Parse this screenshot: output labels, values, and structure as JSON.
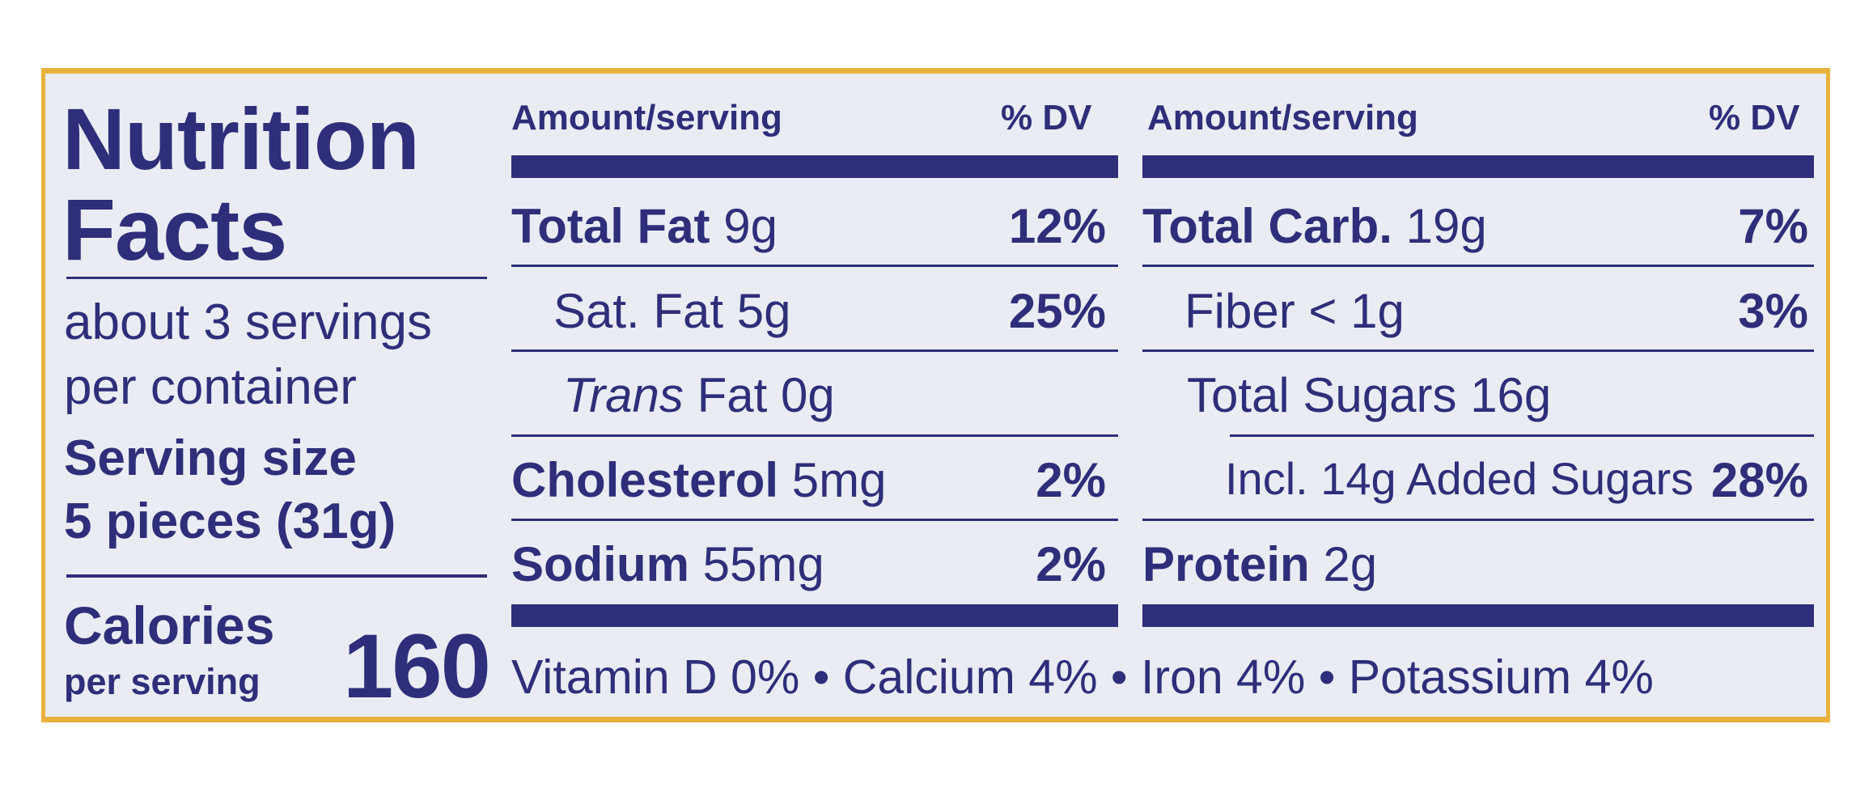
{
  "panel": {
    "title_line1": "Nutrition",
    "title_line2": "Facts",
    "servings_line1": "about 3 servings",
    "servings_line2": "per container",
    "serving_size_label": "Serving size",
    "serving_size_value": "5 pieces (31g)",
    "calories_label": "Calories",
    "per_serving": "per serving",
    "calories_value": "160"
  },
  "left_column": {
    "header_amount": "Amount/serving",
    "header_dv": "% DV",
    "rows": [
      {
        "name": "Total Fat",
        "amount": "9g",
        "dv": "12%"
      },
      {
        "name": "Sat. Fat",
        "amount": "5g",
        "dv": "25%"
      },
      {
        "name": "Trans",
        "name_rest": "Fat",
        "amount": "0g",
        "dv": ""
      },
      {
        "name": "Cholesterol",
        "amount": "5mg",
        "dv": "2%"
      },
      {
        "name": "Sodium",
        "amount": "55mg",
        "dv": "2%"
      }
    ]
  },
  "right_column": {
    "header_amount": "Amount/serving",
    "header_dv": "% DV",
    "rows": [
      {
        "name": "Total Carb.",
        "amount": "19g",
        "dv": "7%"
      },
      {
        "name": "Fiber",
        "amount": "< 1g",
        "dv": "3%"
      },
      {
        "name": "Total Sugars",
        "amount": "16g",
        "dv": ""
      },
      {
        "name": "Incl. 14g Added Sugars",
        "amount": "",
        "dv": "28%"
      },
      {
        "name": "Protein",
        "amount": "2g",
        "dv": ""
      }
    ]
  },
  "footer": "Vitamin D 0% • Calcium 4% • Iron 4% • Potassium 4%",
  "colors": {
    "ink": "#2e2e7a",
    "background": "#e9edf3",
    "border": "#e8b23c"
  }
}
